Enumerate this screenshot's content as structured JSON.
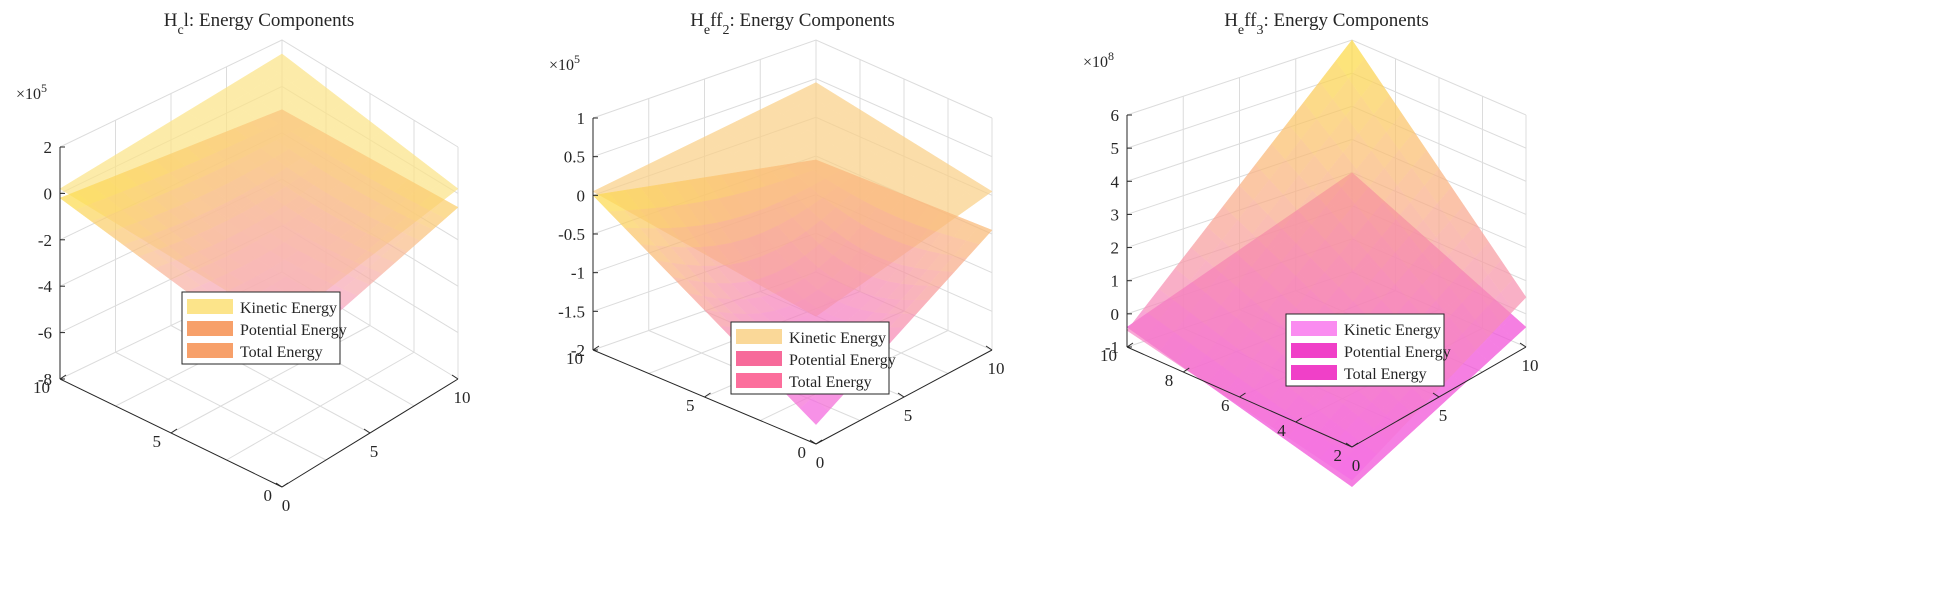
{
  "chart_data": [
    {
      "type": "surface3d",
      "title": "H_c l: Energy Components",
      "title_parts": {
        "a": "H",
        "a_sub": "c",
        "b": "l: Energy Components"
      },
      "exponent_label": "×10",
      "exponent_power": "5",
      "x_ticks": [
        "0",
        "5",
        "10"
      ],
      "y_ticks": [
        "0",
        "5",
        "10"
      ],
      "z_ticks": [
        "-8",
        "-6",
        "-4",
        "-2",
        "0",
        "2"
      ],
      "zlim": [
        -8,
        2
      ],
      "grid": true,
      "legend_position": "inside-lower-center",
      "legend": [
        {
          "label": "Kinetic Energy",
          "color": "#FCE48A"
        },
        {
          "label": "Potential Energy",
          "color": "#F7A06A"
        },
        {
          "label": "Total Energy",
          "color": "#F7A06A"
        }
      ],
      "surfaces": [
        {
          "kind": "plane",
          "corners_z": [
            0.2,
            1.4,
            0.2,
            -1.0
          ],
          "colors": [
            "#FCE488",
            "#FCE488"
          ]
        },
        {
          "kind": "bowl",
          "corners_z": [
            -0.2,
            -1.0,
            -0.6,
            -2.6
          ],
          "colors": [
            "#FDE04A",
            "#F58CF0"
          ]
        }
      ]
    },
    {
      "type": "surface3d",
      "title": "H_e ff_2: Energy Components",
      "title_parts": {
        "a": "H",
        "a_sub": "e",
        "b": "ff",
        "b_sub": "2",
        "c": ": Energy Components"
      },
      "exponent_label": "×10",
      "exponent_power": "5",
      "x_ticks": [
        "0",
        "5",
        "10"
      ],
      "y_ticks": [
        "0",
        "5",
        "10"
      ],
      "z_ticks": [
        "-2",
        "-1.5",
        "-1",
        "-0.5",
        "0",
        "0.5",
        "1"
      ],
      "zlim": [
        -2,
        1
      ],
      "grid": true,
      "legend_position": "inside-lower-center",
      "legend": [
        {
          "label": "Kinetic Energy",
          "color": "#FAD898"
        },
        {
          "label": "Potential Energy",
          "color": "#F76A9A"
        },
        {
          "label": "Total Energy",
          "color": "#FC6E9C"
        }
      ],
      "surfaces": [
        {
          "kind": "plane",
          "corners_z": [
            0.05,
            0.45,
            0.05,
            -0.35
          ],
          "colors": [
            "#FAD088",
            "#FAD088"
          ]
        },
        {
          "kind": "bowl",
          "corners_z": [
            0.0,
            -0.55,
            -0.45,
            -1.75
          ],
          "colors": [
            "#FDE04A",
            "#F460E8"
          ]
        }
      ]
    },
    {
      "type": "surface3d",
      "title": "H_e ff_3: Energy Components",
      "title_parts": {
        "a": "H",
        "a_sub": "e",
        "b": "ff",
        "b_sub": "3",
        "c": ": Energy Components"
      },
      "exponent_label": "×10",
      "exponent_power": "8",
      "x_ticks": [
        "0",
        "5",
        "10"
      ],
      "y_ticks": [
        "2",
        "4",
        "6",
        "8",
        "10"
      ],
      "z_ticks": [
        "-1",
        "0",
        "1",
        "2",
        "3",
        "4",
        "5",
        "6"
      ],
      "zlim": [
        -1,
        6
      ],
      "grid": true,
      "legend_position": "inside-lower-right",
      "legend": [
        {
          "label": "Kinetic Energy",
          "color": "#FA8CF0"
        },
        {
          "label": "Potential Energy",
          "color": "#F040C8"
        },
        {
          "label": "Total Energy",
          "color": "#F040C8"
        }
      ],
      "surfaces": [
        {
          "kind": "plane",
          "corners_z": [
            -0.4,
            2.0,
            -0.4,
            -2.2
          ],
          "colors": [
            "#F24ED8",
            "#F24ED8"
          ]
        },
        {
          "kind": "peak",
          "corners_z": [
            -0.5,
            6.0,
            0.5,
            -2.0
          ],
          "colors": [
            "#FDE040",
            "#F56CE8"
          ]
        }
      ]
    }
  ]
}
